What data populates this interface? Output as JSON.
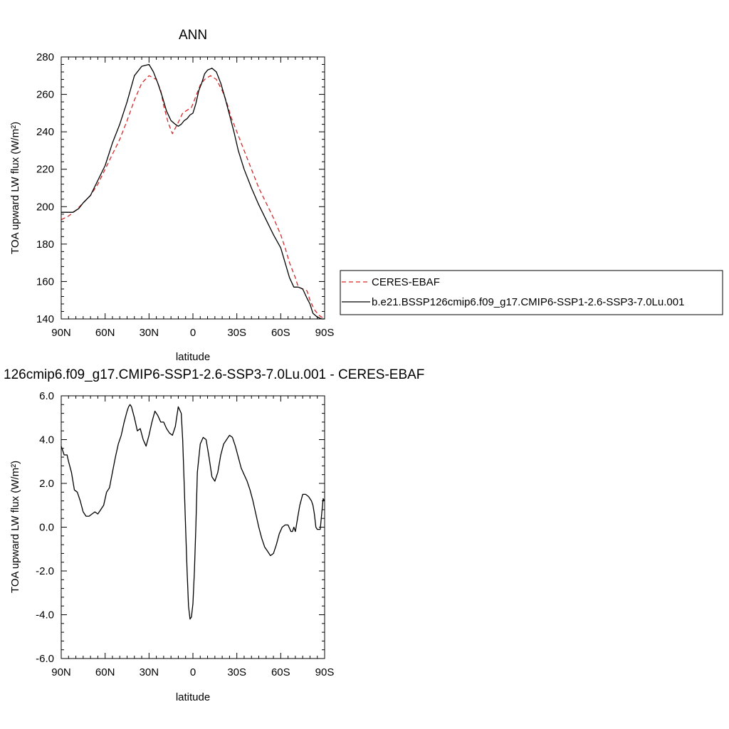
{
  "chart_data": [
    {
      "type": "line",
      "title": "ANN",
      "xlabel": "latitude",
      "ylabel": "TOA upward LW flux (W/m²)",
      "xlim": [
        90,
        -90
      ],
      "ylim": [
        140,
        280
      ],
      "x_ticks": [
        {
          "value": 90,
          "label": "90N"
        },
        {
          "value": 60,
          "label": "60N"
        },
        {
          "value": 30,
          "label": "30N"
        },
        {
          "value": 0,
          "label": "0"
        },
        {
          "value": -30,
          "label": "30S"
        },
        {
          "value": -60,
          "label": "60S"
        },
        {
          "value": -90,
          "label": "90S"
        }
      ],
      "y_ticks": [
        {
          "value": 140,
          "label": "140"
        },
        {
          "value": 160,
          "label": "160"
        },
        {
          "value": 180,
          "label": "180"
        },
        {
          "value": 200,
          "label": "200"
        },
        {
          "value": 220,
          "label": "220"
        },
        {
          "value": 240,
          "label": "240"
        },
        {
          "value": 260,
          "label": "260"
        },
        {
          "value": 280,
          "label": "280"
        }
      ],
      "legend": "right",
      "series": [
        {
          "name": "CERES-EBAF",
          "color": "#d62728",
          "dash": "dashed",
          "x": [
            90,
            85,
            80,
            75,
            70,
            65,
            60,
            55,
            50,
            45,
            40,
            35,
            30,
            25,
            22,
            20,
            17,
            14,
            10,
            7,
            5,
            3,
            1,
            -1,
            -3,
            -5,
            -8,
            -12,
            -16,
            -20,
            -23,
            -26,
            -30,
            -35,
            -40,
            -45,
            -50,
            -55,
            -60,
            -63,
            -66,
            -70,
            -72,
            -75,
            -78,
            -80,
            -83,
            -86,
            -88,
            -90
          ],
          "y": [
            193,
            195,
            198,
            202,
            206,
            212,
            220,
            228,
            236,
            246,
            257,
            266,
            270,
            268,
            262,
            254,
            245,
            239,
            245,
            250,
            251,
            252,
            253,
            257,
            261,
            265,
            268,
            270,
            268,
            262,
            256,
            248,
            240,
            230,
            220,
            210,
            202,
            194,
            185,
            178,
            170,
            162,
            157,
            156,
            155,
            150,
            145,
            142,
            141,
            140
          ]
        },
        {
          "name": "b.e21.BSSP126cmip6.f09_g17.CMIP6-SSP1-2.6-SSP3-7.0Lu.001",
          "color": "#000000",
          "dash": "solid",
          "x": [
            90,
            86,
            82,
            78,
            75,
            70,
            65,
            60,
            55,
            50,
            45,
            40,
            35,
            30,
            27,
            24,
            21,
            18,
            15,
            12,
            10,
            8,
            6,
            4,
            2,
            0,
            -2,
            -4,
            -6,
            -8,
            -10,
            -13,
            -16,
            -19,
            -22,
            -25,
            -28,
            -31,
            -35,
            -40,
            -45,
            -50,
            -55,
            -60,
            -63,
            -66,
            -69,
            -72,
            -75,
            -78,
            -80,
            -82,
            -85,
            -88,
            -90
          ],
          "y": [
            197,
            197,
            197,
            199,
            202,
            206,
            214,
            222,
            234,
            244,
            256,
            270,
            275,
            276,
            272,
            266,
            259,
            251,
            246,
            244,
            243,
            244,
            246,
            247,
            249,
            250,
            255,
            262,
            266,
            271,
            273,
            274,
            272,
            266,
            258,
            249,
            240,
            230,
            220,
            210,
            201,
            193,
            185,
            178,
            170,
            162,
            157,
            157,
            156,
            151,
            148,
            143,
            141,
            140,
            140
          ]
        }
      ]
    },
    {
      "type": "line",
      "title": "126cmip6.f09_g17.CMIP6-SSP1-2.6-SSP3-7.0Lu.001 - CERES-EBAF",
      "xlabel": "latitude",
      "ylabel": "TOA upward LW flux (W/m²)",
      "xlim": [
        90,
        -90
      ],
      "ylim": [
        -6,
        6
      ],
      "x_ticks": [
        {
          "value": 90,
          "label": "90N"
        },
        {
          "value": 60,
          "label": "60N"
        },
        {
          "value": 30,
          "label": "30N"
        },
        {
          "value": 0,
          "label": "0"
        },
        {
          "value": -30,
          "label": "30S"
        },
        {
          "value": -60,
          "label": "60S"
        },
        {
          "value": -90,
          "label": "90S"
        }
      ],
      "y_ticks": [
        {
          "value": -6,
          "label": "-6.0"
        },
        {
          "value": -4,
          "label": "-4.0"
        },
        {
          "value": -2,
          "label": "-2.0"
        },
        {
          "value": 0,
          "label": "0.0"
        },
        {
          "value": 2,
          "label": "2.0"
        },
        {
          "value": 4,
          "label": "4.0"
        },
        {
          "value": 6,
          "label": "6.0"
        }
      ],
      "series": [
        {
          "color": "#000000",
          "dash": "solid",
          "x": [
            90,
            88,
            86,
            85,
            83,
            81,
            79,
            77,
            75,
            73,
            71,
            69,
            67,
            65,
            63,
            61,
            59,
            57,
            55,
            53,
            51,
            49,
            47,
            45,
            44,
            43,
            42,
            40,
            38,
            36,
            34,
            32,
            30,
            28,
            26,
            24,
            22,
            20,
            18,
            16,
            14,
            12,
            10,
            8,
            7,
            6,
            5,
            4,
            3,
            2,
            1,
            0,
            -1,
            -2,
            -3,
            -5,
            -7,
            -9,
            -11,
            -13,
            -15,
            -17,
            -19,
            -21,
            -23,
            -25,
            -27,
            -29,
            -31,
            -33,
            -35,
            -37,
            -39,
            -41,
            -43,
            -45,
            -47,
            -49,
            -51,
            -53,
            -55,
            -57,
            -59,
            -61,
            -63,
            -65,
            -67,
            -68,
            -69,
            -70,
            -72,
            -73,
            -75,
            -77,
            -79,
            -81,
            -82,
            -83,
            -84,
            -85,
            -87,
            -89,
            -90
          ],
          "y": [
            3.7,
            3.3,
            3.3,
            3.0,
            2.5,
            1.7,
            1.6,
            1.2,
            0.7,
            0.5,
            0.5,
            0.6,
            0.7,
            0.6,
            0.8,
            1.0,
            1.6,
            1.8,
            2.5,
            3.2,
            3.8,
            4.2,
            4.8,
            5.3,
            5.5,
            5.6,
            5.5,
            5.0,
            4.4,
            4.5,
            4.0,
            3.7,
            4.2,
            4.8,
            5.3,
            5.1,
            4.8,
            4.8,
            4.5,
            4.3,
            4.2,
            4.6,
            5.5,
            5.2,
            4.0,
            2.0,
            0.0,
            -2.0,
            -3.6,
            -4.2,
            -4.1,
            -3.5,
            -2.0,
            0.0,
            2.5,
            3.8,
            4.1,
            4.0,
            3.2,
            2.3,
            2.1,
            2.5,
            3.3,
            3.8,
            4.0,
            4.2,
            4.1,
            3.7,
            3.2,
            2.7,
            2.4,
            2.1,
            1.7,
            1.2,
            0.6,
            0.0,
            -0.5,
            -0.9,
            -1.1,
            -1.3,
            -1.2,
            -0.8,
            -0.3,
            0.0,
            0.1,
            0.1,
            -0.2,
            -0.2,
            0.0,
            -0.2,
            0.6,
            1.0,
            1.5,
            1.5,
            1.4,
            1.2,
            1.0,
            0.6,
            0.0,
            -0.1,
            -0.1,
            1.3,
            1.2
          ]
        }
      ]
    }
  ]
}
